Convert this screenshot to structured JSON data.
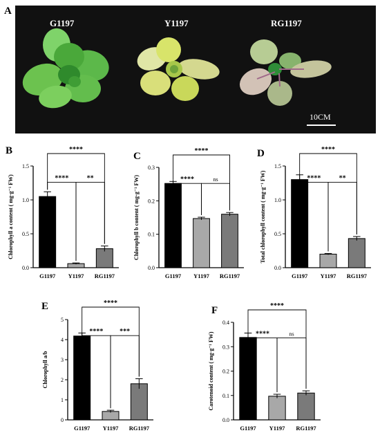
{
  "panel_a": {
    "letter": "A",
    "labels": [
      "G1197",
      "Y1197",
      "RG1197"
    ],
    "scale_bar": "10CM",
    "colors": {
      "background": "#111111",
      "green_leaf": "#5cb84a",
      "yellow_leaf": "#d8df7a",
      "red_green_leaf": "#b9c39a"
    }
  },
  "colors": {
    "G1197": "#000000",
    "Y1197": "#a8a8a8",
    "RG1197": "#7a7a7a"
  },
  "chart_data": [
    {
      "panel": "B",
      "type": "bar",
      "categories": [
        "G1197",
        "Y1197",
        "RG1197"
      ],
      "values": [
        1.05,
        0.06,
        0.28
      ],
      "errors": [
        0.07,
        0.01,
        0.04
      ],
      "ylabel": "Chlorophyll a content ( mg·g⁻¹ FW)",
      "ylim": [
        0,
        1.5
      ],
      "yticks": [
        "0.0",
        "0.5",
        "1.0",
        "1.5"
      ],
      "ytick_values": [
        0,
        0.5,
        1.0,
        1.5
      ],
      "significance": [
        {
          "from": 0,
          "to": 2,
          "label": "****"
        },
        {
          "from": 0,
          "to": 1,
          "label": "****"
        },
        {
          "from": 1,
          "to": 2,
          "label": "**"
        }
      ]
    },
    {
      "panel": "C",
      "type": "bar",
      "categories": [
        "G1197",
        "Y1197",
        "RG1197"
      ],
      "values": [
        0.252,
        0.147,
        0.16
      ],
      "errors": [
        0.006,
        0.004,
        0.005
      ],
      "ylabel": "Chlorophyll b content ( mg·g⁻¹ FW)",
      "ylim": [
        0,
        0.3
      ],
      "yticks": [
        "0.0",
        "0.1",
        "0.2",
        "0.3"
      ],
      "ytick_values": [
        0,
        0.1,
        0.2,
        0.3
      ],
      "significance": [
        {
          "from": 0,
          "to": 2,
          "label": "****"
        },
        {
          "from": 0,
          "to": 1,
          "label": "****"
        },
        {
          "from": 1,
          "to": 2,
          "label": "ns"
        }
      ]
    },
    {
      "panel": "D",
      "type": "bar",
      "categories": [
        "G1197",
        "Y1197",
        "RG1197"
      ],
      "values": [
        1.3,
        0.2,
        0.43
      ],
      "errors": [
        0.07,
        0.01,
        0.03
      ],
      "ylabel": "Total chlorophyll content ( mg·g⁻¹ FW)",
      "ylim": [
        0,
        1.5
      ],
      "yticks": [
        "0.0",
        "0.5",
        "1.0",
        "1.5"
      ],
      "ytick_values": [
        0,
        0.5,
        1.0,
        1.5
      ],
      "significance": [
        {
          "from": 0,
          "to": 2,
          "label": "****"
        },
        {
          "from": 0,
          "to": 1,
          "label": "****"
        },
        {
          "from": 1,
          "to": 2,
          "label": "**"
        }
      ]
    },
    {
      "panel": "E",
      "type": "bar",
      "categories": [
        "G1197",
        "Y1197",
        "RG1197"
      ],
      "values": [
        4.18,
        0.42,
        1.8
      ],
      "errors": [
        0.15,
        0.06,
        0.25
      ],
      "ylabel": "Chlorophyll a/b",
      "ylim": [
        0,
        5
      ],
      "yticks": [
        "0",
        "1",
        "2",
        "3",
        "4",
        "5"
      ],
      "ytick_values": [
        0,
        1,
        2,
        3,
        4,
        5
      ],
      "significance": [
        {
          "from": 0,
          "to": 2,
          "label": "****"
        },
        {
          "from": 0,
          "to": 1,
          "label": "****"
        },
        {
          "from": 1,
          "to": 2,
          "label": "***"
        }
      ]
    },
    {
      "panel": "F",
      "type": "bar",
      "categories": [
        "G1197",
        "Y1197",
        "RG1197"
      ],
      "values": [
        0.338,
        0.097,
        0.11
      ],
      "errors": [
        0.018,
        0.008,
        0.009
      ],
      "ylabel": "Carotenoid content ( mg·g⁻¹ FW)",
      "ylim": [
        0,
        0.4
      ],
      "yticks": [
        "0.0",
        "0.1",
        "0.2",
        "0.3",
        "0.4"
      ],
      "ytick_values": [
        0,
        0.1,
        0.2,
        0.3,
        0.4
      ],
      "significance": [
        {
          "from": 0,
          "to": 2,
          "label": "****"
        },
        {
          "from": 0,
          "to": 1,
          "label": "****"
        },
        {
          "from": 1,
          "to": 2,
          "label": "ns"
        }
      ]
    }
  ]
}
